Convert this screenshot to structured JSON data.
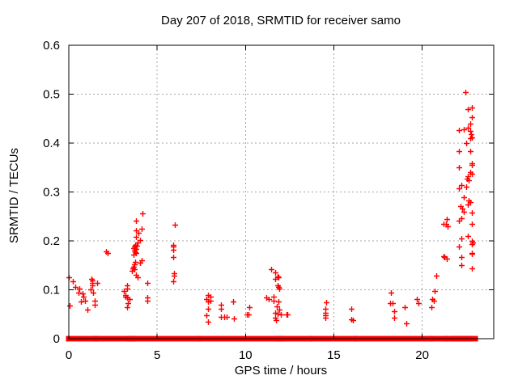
{
  "chart_data": {
    "type": "scatter",
    "title": "Day 207 of 2018, SRMTID for receiver samo",
    "xlabel": "GPS time / hours",
    "ylabel": "SRMTID / TECUs",
    "xlim": [
      0,
      24.05
    ],
    "ylim": [
      0,
      0.6
    ],
    "xticks": [
      0,
      5,
      10,
      15,
      20
    ],
    "xtick_labels": [
      "0",
      "5",
      "10",
      "15",
      "20"
    ],
    "yticks": [
      0,
      0.1,
      0.2,
      0.3,
      0.4,
      0.5,
      0.6
    ],
    "ytick_labels": [
      "0",
      "0.1",
      "0.2",
      "0.3",
      "0.4",
      "0.5",
      "0.6"
    ],
    "grid": true,
    "legend": "none",
    "marker": "plus",
    "marker_color": "#ff0000",
    "grid_color": "#a6a6a6",
    "border_color": "#000000",
    "series_name": "SRMTID",
    "points": [
      [
        0.02,
        0.126
      ],
      [
        0.05,
        0.068
      ],
      [
        0.23,
        0.117
      ],
      [
        0.38,
        0.106
      ],
      [
        0.53,
        0.094
      ],
      [
        0.6,
        0.103
      ],
      [
        0.69,
        0.076
      ],
      [
        0.76,
        0.093
      ],
      [
        0.84,
        0.086
      ],
      [
        0.9,
        0.078
      ],
      [
        1.07,
        0.06
      ],
      [
        1.24,
        0.101
      ],
      [
        1.28,
        0.122
      ],
      [
        1.33,
        0.119
      ],
      [
        1.33,
        0.114
      ],
      [
        1.35,
        0.109
      ],
      [
        1.37,
        0.094
      ],
      [
        1.45,
        0.078
      ],
      [
        1.48,
        0.07
      ],
      [
        1.6,
        0.114
      ],
      [
        2.1,
        0.178
      ],
      [
        2.18,
        0.175
      ],
      [
        3.12,
        0.098
      ],
      [
        3.28,
        0.109
      ],
      [
        3.3,
        0.103
      ],
      [
        3.2,
        0.089
      ],
      [
        3.22,
        0.086
      ],
      [
        3.3,
        0.084
      ],
      [
        3.42,
        0.081
      ],
      [
        3.35,
        0.073
      ],
      [
        3.3,
        0.064
      ],
      [
        3.58,
        0.139
      ],
      [
        3.63,
        0.144
      ],
      [
        3.67,
        0.147
      ],
      [
        3.7,
        0.142
      ],
      [
        3.72,
        0.152
      ],
      [
        3.76,
        0.157
      ],
      [
        3.67,
        0.172
      ],
      [
        3.8,
        0.175
      ],
      [
        3.74,
        0.177
      ],
      [
        3.7,
        0.18
      ],
      [
        3.78,
        0.183
      ],
      [
        3.67,
        0.185
      ],
      [
        3.72,
        0.188
      ],
      [
        3.85,
        0.19
      ],
      [
        3.76,
        0.192
      ],
      [
        3.89,
        0.197
      ],
      [
        4.03,
        0.202
      ],
      [
        3.82,
        0.208
      ],
      [
        3.94,
        0.217
      ],
      [
        3.8,
        0.221
      ],
      [
        4.12,
        0.225
      ],
      [
        3.8,
        0.241
      ],
      [
        4.15,
        0.256
      ],
      [
        4.03,
        0.155
      ],
      [
        4.12,
        0.16
      ],
      [
        3.8,
        0.131
      ],
      [
        3.89,
        0.126
      ],
      [
        4.44,
        0.114
      ],
      [
        4.44,
        0.084
      ],
      [
        4.46,
        0.078
      ],
      [
        5.9,
        0.117
      ],
      [
        5.95,
        0.129
      ],
      [
        5.95,
        0.134
      ],
      [
        5.9,
        0.167
      ],
      [
        5.9,
        0.182
      ],
      [
        5.92,
        0.188
      ],
      [
        5.9,
        0.192
      ],
      [
        6.0,
        0.233
      ],
      [
        7.8,
        0.048
      ],
      [
        7.8,
        0.081
      ],
      [
        7.9,
        0.035
      ],
      [
        7.9,
        0.061
      ],
      [
        7.9,
        0.076
      ],
      [
        7.9,
        0.089
      ],
      [
        8.0,
        0.078
      ],
      [
        8.0,
        0.086
      ],
      [
        8.6,
        0.045
      ],
      [
        8.6,
        0.061
      ],
      [
        8.6,
        0.069
      ],
      [
        8.8,
        0.045
      ],
      [
        8.93,
        0.045
      ],
      [
        9.3,
        0.076
      ],
      [
        9.35,
        0.041
      ],
      [
        10.1,
        0.05
      ],
      [
        10.16,
        0.05
      ],
      [
        10.2,
        0.064
      ],
      [
        11.2,
        0.084
      ],
      [
        11.3,
        0.081
      ],
      [
        11.45,
        0.142
      ],
      [
        11.6,
        0.078
      ],
      [
        11.6,
        0.086
      ],
      [
        11.7,
        0.122
      ],
      [
        11.7,
        0.136
      ],
      [
        11.7,
        0.053
      ],
      [
        11.7,
        0.043
      ],
      [
        11.75,
        0.038
      ],
      [
        11.77,
        0.066
      ],
      [
        11.8,
        0.109
      ],
      [
        11.8,
        0.127
      ],
      [
        11.8,
        0.051
      ],
      [
        11.85,
        0.106
      ],
      [
        11.85,
        0.126
      ],
      [
        11.85,
        0.076
      ],
      [
        11.9,
        0.103
      ],
      [
        11.9,
        0.06
      ],
      [
        12.0,
        0.05
      ],
      [
        12.3,
        0.05
      ],
      [
        12.37,
        0.05
      ],
      [
        14.5,
        0.043
      ],
      [
        14.5,
        0.048
      ],
      [
        14.5,
        0.053
      ],
      [
        14.5,
        0.061
      ],
      [
        14.57,
        0.074
      ],
      [
        16.0,
        0.04
      ],
      [
        16.0,
        0.061
      ],
      [
        16.1,
        0.038
      ],
      [
        18.2,
        0.073
      ],
      [
        18.25,
        0.094
      ],
      [
        18.32,
        0.073
      ],
      [
        18.4,
        0.056
      ],
      [
        18.4,
        0.043
      ],
      [
        19.0,
        0.064
      ],
      [
        19.1,
        0.031
      ],
      [
        19.7,
        0.081
      ],
      [
        19.78,
        0.073
      ],
      [
        20.5,
        0.064
      ],
      [
        20.55,
        0.081
      ],
      [
        20.68,
        0.078
      ],
      [
        20.7,
        0.098
      ],
      [
        20.8,
        0.129
      ],
      [
        21.2,
        0.169
      ],
      [
        21.25,
        0.167
      ],
      [
        21.4,
        0.164
      ],
      [
        21.2,
        0.235
      ],
      [
        21.35,
        0.235
      ],
      [
        21.4,
        0.245
      ],
      [
        21.42,
        0.23
      ],
      [
        22.1,
        0.188
      ],
      [
        22.1,
        0.241
      ],
      [
        22.1,
        0.307
      ],
      [
        22.1,
        0.35
      ],
      [
        22.1,
        0.384
      ],
      [
        22.1,
        0.427
      ],
      [
        22.15,
        0.271
      ],
      [
        22.2,
        0.15
      ],
      [
        22.2,
        0.167
      ],
      [
        22.2,
        0.205
      ],
      [
        22.2,
        0.246
      ],
      [
        22.2,
        0.314
      ],
      [
        22.25,
        0.266
      ],
      [
        22.35,
        0.26
      ],
      [
        22.35,
        0.29
      ],
      [
        22.35,
        0.428
      ],
      [
        22.45,
        0.504
      ],
      [
        22.5,
        0.31
      ],
      [
        22.5,
        0.4
      ],
      [
        22.55,
        0.328
      ],
      [
        22.58,
        0.274
      ],
      [
        22.6,
        0.21
      ],
      [
        22.6,
        0.332
      ],
      [
        22.6,
        0.431
      ],
      [
        22.6,
        0.47
      ],
      [
        22.62,
        0.283
      ],
      [
        22.65,
        0.324
      ],
      [
        22.7,
        0.28
      ],
      [
        22.7,
        0.34
      ],
      [
        22.7,
        0.384
      ],
      [
        22.7,
        0.41
      ],
      [
        22.7,
        0.425
      ],
      [
        22.7,
        0.44
      ],
      [
        22.75,
        0.418
      ],
      [
        22.8,
        0.144
      ],
      [
        22.8,
        0.174
      ],
      [
        22.8,
        0.175
      ],
      [
        22.8,
        0.193
      ],
      [
        22.8,
        0.2
      ],
      [
        22.8,
        0.235
      ],
      [
        22.8,
        0.258
      ],
      [
        22.8,
        0.337
      ],
      [
        22.8,
        0.355
      ],
      [
        22.8,
        0.359
      ],
      [
        22.8,
        0.453
      ],
      [
        22.8,
        0.473
      ],
      [
        22.82,
        0.412
      ],
      [
        22.85,
        0.197
      ]
    ],
    "zero_line_segments": [
      [
        0.0,
        1.48
      ],
      [
        1.55,
        3.42
      ],
      [
        3.45,
        3.52
      ],
      [
        3.56,
        3.62
      ],
      [
        3.66,
        7.32
      ],
      [
        7.46,
        11.78
      ],
      [
        11.88,
        12.05
      ],
      [
        12.12,
        13.65
      ],
      [
        13.8,
        16.15
      ],
      [
        16.28,
        20.46
      ],
      [
        20.58,
        21.3
      ],
      [
        21.42,
        21.75
      ],
      [
        21.8,
        22.05
      ],
      [
        22.1,
        22.3
      ],
      [
        22.36,
        22.52
      ],
      [
        22.58,
        22.72
      ],
      [
        22.78,
        23.0
      ]
    ]
  }
}
